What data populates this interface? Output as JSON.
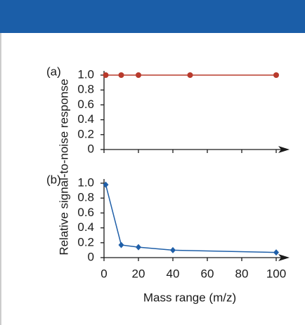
{
  "chart_data": [
    {
      "type": "line",
      "panel_label": "(a)",
      "ylabel": "Relative signal-to-noise response",
      "x": [
        1,
        10,
        20,
        50,
        100
      ],
      "values": [
        1.0,
        1.0,
        1.0,
        1.0,
        1.0
      ],
      "color": "#b83a2c",
      "marker": "circle",
      "xlim": [
        0,
        100
      ],
      "xticks": [
        0,
        20,
        40,
        60,
        80,
        100
      ],
      "xtick_labels": false,
      "ylim": [
        0,
        1
      ],
      "yticks": [
        0,
        0.2,
        0.4,
        0.6,
        0.8,
        {
          "value": 1,
          "label": "1.0"
        }
      ]
    },
    {
      "type": "line",
      "panel_label": "(b)",
      "xlabel": "Mass range (m/z)",
      "x": [
        1,
        10,
        20,
        40,
        100
      ],
      "values": [
        0.98,
        0.17,
        0.14,
        0.1,
        0.07
      ],
      "color": "#1f5fa8",
      "marker": "diamond",
      "xlim": [
        0,
        100
      ],
      "xticks": [
        0,
        20,
        40,
        60,
        80,
        100
      ],
      "xtick_labels": true,
      "ylim": [
        0,
        1
      ],
      "yticks": [
        0,
        0.2,
        0.4,
        0.6,
        0.8,
        {
          "value": 1,
          "label": "1.0"
        }
      ]
    }
  ]
}
